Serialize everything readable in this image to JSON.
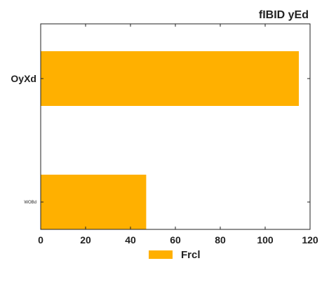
{
  "chart_data": {
    "type": "bar",
    "orientation": "horizontal",
    "title": "fIBID yEd",
    "categories": [
      "OyXd",
      "WOBd"
    ],
    "series": [
      {
        "name": "Frcl",
        "values": [
          115,
          47
        ],
        "color": "#FFB000"
      }
    ],
    "xlim": [
      0,
      120
    ],
    "xticks": [
      0,
      20,
      40,
      60,
      80,
      100,
      120
    ],
    "xlabel": "",
    "ylabel": "",
    "grid": false,
    "legend_position": "bottom-center"
  }
}
